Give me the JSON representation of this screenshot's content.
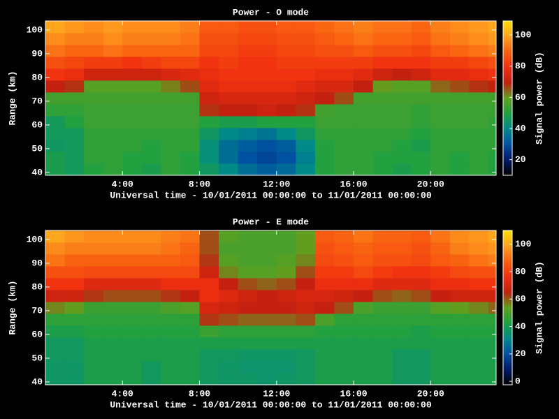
{
  "chart_data": [
    {
      "type": "heatmap",
      "title": "Power - O mode",
      "x_label": "Universal time - 10/01/2011 00:00:00 to 11/01/2011 00:00:00",
      "y_label": "Range (km)",
      "colorbar_label": "Signal power (dB)",
      "x": [
        0,
        1,
        2,
        3,
        4,
        5,
        6,
        7,
        8,
        9,
        10,
        11,
        12,
        13,
        14,
        15,
        16,
        17,
        18,
        19,
        20,
        21,
        22,
        23
      ],
      "y": [
        38.8,
        43.8,
        48.8,
        53.8,
        58.8,
        63.8,
        68.8,
        73.8,
        78.8,
        83.8,
        88.8,
        93.8,
        98.8
      ],
      "z": [
        [
          48,
          46,
          50,
          52,
          50,
          48,
          52,
          50,
          45,
          40,
          35,
          32,
          34,
          40,
          50,
          52,
          52,
          50,
          48,
          50,
          52,
          50,
          52,
          50
        ],
        [
          48,
          46,
          52,
          52,
          50,
          50,
          52,
          50,
          42,
          35,
          30,
          28,
          30,
          38,
          50,
          52,
          52,
          50,
          50,
          50,
          52,
          50,
          52,
          50
        ],
        [
          45,
          46,
          52,
          52,
          52,
          50,
          52,
          52,
          42,
          35,
          32,
          30,
          32,
          40,
          50,
          52,
          52,
          52,
          50,
          48,
          52,
          52,
          52,
          52
        ],
        [
          46,
          46,
          52,
          52,
          52,
          52,
          52,
          52,
          45,
          40,
          38,
          36,
          40,
          45,
          52,
          52,
          52,
          52,
          52,
          50,
          52,
          52,
          52,
          52
        ],
        [
          46,
          50,
          54,
          54,
          54,
          54,
          54,
          54,
          50,
          48,
          48,
          50,
          50,
          50,
          54,
          54,
          54,
          54,
          54,
          52,
          54,
          54,
          54,
          52
        ],
        [
          52,
          52,
          54,
          54,
          54,
          54,
          54,
          54,
          68,
          70,
          70,
          72,
          70,
          68,
          55,
          54,
          54,
          54,
          54,
          52,
          54,
          54,
          54,
          54
        ],
        [
          55,
          55,
          55,
          55,
          55,
          55,
          55,
          55,
          72,
          74,
          74,
          74,
          74,
          72,
          70,
          66,
          55,
          55,
          55,
          55,
          55,
          55,
          55,
          55
        ],
        [
          70,
          68,
          58,
          58,
          58,
          58,
          62,
          66,
          76,
          78,
          78,
          78,
          78,
          76,
          74,
          74,
          70,
          60,
          58,
          58,
          64,
          66,
          68,
          70
        ],
        [
          80,
          78,
          72,
          72,
          72,
          72,
          74,
          76,
          78,
          80,
          80,
          80,
          80,
          80,
          78,
          78,
          76,
          72,
          70,
          72,
          76,
          76,
          78,
          80
        ],
        [
          86,
          84,
          82,
          82,
          80,
          82,
          84,
          84,
          80,
          82,
          80,
          80,
          82,
          82,
          82,
          82,
          82,
          80,
          80,
          80,
          82,
          82,
          84,
          86
        ],
        [
          92,
          90,
          90,
          92,
          90,
          90,
          90,
          90,
          84,
          84,
          82,
          82,
          84,
          84,
          86,
          86,
          88,
          86,
          86,
          84,
          88,
          90,
          92,
          94
        ],
        [
          96,
          94,
          94,
          96,
          94,
          94,
          94,
          92,
          86,
          86,
          84,
          84,
          86,
          86,
          88,
          90,
          92,
          90,
          90,
          88,
          92,
          94,
          96,
          98
        ],
        [
          100,
          98,
          96,
          98,
          96,
          96,
          96,
          94,
          88,
          88,
          86,
          86,
          88,
          88,
          90,
          92,
          94,
          92,
          92,
          90,
          94,
          96,
          98,
          100
        ]
      ],
      "xlim": [
        0,
        23.4
      ],
      "ylim": [
        38.8,
        103.8
      ],
      "zlim": [
        10,
        109
      ],
      "xticks": [
        {
          "value": 4,
          "label": "4:00"
        },
        {
          "value": 8,
          "label": "8:00"
        },
        {
          "value": 12,
          "label": "12:00"
        },
        {
          "value": 16,
          "label": "16:00"
        },
        {
          "value": 20,
          "label": "20:00"
        }
      ],
      "yticks": [
        40,
        50,
        60,
        70,
        80,
        90,
        100
      ],
      "zticks": [
        20,
        40,
        60,
        80,
        100
      ],
      "colormap": [
        "#000000",
        "#001a66",
        "#0050a0",
        "#008a8a",
        "#20a040",
        "#60a020",
        "#c02010",
        "#f03010",
        "#f86010",
        "#ffa020",
        "#ffe000"
      ]
    },
    {
      "type": "heatmap",
      "title": "Power - E mode",
      "x_label": "Universal time - 10/01/2011 00:00:00 to 11/01/2011 00:00:00",
      "y_label": "Range (km)",
      "colorbar_label": "Signal power (dB)",
      "x": [
        0,
        1,
        2,
        3,
        4,
        5,
        6,
        7,
        8,
        9,
        10,
        11,
        12,
        13,
        14,
        15,
        16,
        17,
        18,
        19,
        20,
        21,
        22,
        23
      ],
      "y": [
        38.8,
        43.8,
        48.8,
        53.8,
        58.8,
        63.8,
        68.8,
        73.8,
        78.8,
        83.8,
        88.8,
        93.8,
        98.8
      ],
      "z": [
        [
          37,
          37,
          41,
          41,
          41,
          38,
          41,
          41,
          38,
          37,
          37,
          36,
          37,
          38,
          41,
          41,
          41,
          41,
          38,
          38,
          41,
          41,
          41,
          41
        ],
        [
          37,
          37,
          41,
          41,
          41,
          38,
          41,
          41,
          38,
          37,
          36,
          36,
          36,
          38,
          41,
          41,
          41,
          41,
          38,
          38,
          41,
          41,
          41,
          41
        ],
        [
          38,
          38,
          41,
          41,
          41,
          41,
          41,
          41,
          38,
          38,
          37,
          37,
          37,
          38,
          41,
          41,
          41,
          41,
          38,
          38,
          41,
          41,
          41,
          41
        ],
        [
          38,
          38,
          41,
          41,
          41,
          41,
          41,
          41,
          41,
          41,
          41,
          41,
          41,
          41,
          41,
          41,
          41,
          41,
          41,
          41,
          41,
          41,
          41,
          41
        ],
        [
          41,
          41,
          43,
          43,
          43,
          43,
          43,
          43,
          47,
          45,
          45,
          45,
          45,
          45,
          43,
          43,
          43,
          43,
          43,
          41,
          43,
          43,
          43,
          43
        ],
        [
          45,
          45,
          45,
          45,
          45,
          45,
          45,
          45,
          63,
          61,
          59,
          59,
          59,
          61,
          50,
          45,
          45,
          45,
          45,
          45,
          45,
          45,
          45,
          45
        ],
        [
          56,
          54,
          47,
          47,
          47,
          47,
          50,
          52,
          70,
          68,
          66,
          66,
          66,
          68,
          66,
          61,
          50,
          47,
          47,
          47,
          52,
          54,
          56,
          59
        ],
        [
          68,
          68,
          63,
          61,
          61,
          61,
          63,
          66,
          75,
          72,
          68,
          66,
          68,
          70,
          70,
          68,
          66,
          61,
          59,
          61,
          66,
          68,
          68,
          68
        ],
        [
          77,
          77,
          72,
          72,
          72,
          72,
          75,
          75,
          75,
          66,
          61,
          59,
          61,
          66,
          75,
          75,
          75,
          72,
          72,
          72,
          75,
          75,
          77,
          77
        ],
        [
          84,
          84,
          82,
          82,
          82,
          82,
          82,
          82,
          68,
          56,
          52,
          52,
          54,
          61,
          79,
          79,
          82,
          79,
          77,
          77,
          79,
          82,
          84,
          84
        ],
        [
          91,
          88,
          88,
          88,
          88,
          88,
          88,
          86,
          63,
          52,
          50,
          50,
          52,
          56,
          82,
          84,
          86,
          84,
          84,
          82,
          86,
          88,
          91,
          93
        ],
        [
          95,
          93,
          93,
          93,
          93,
          93,
          91,
          88,
          61,
          50,
          50,
          50,
          50,
          54,
          84,
          86,
          88,
          86,
          86,
          84,
          88,
          93,
          95,
          97
        ],
        [
          100,
          97,
          95,
          95,
          95,
          95,
          93,
          91,
          61,
          52,
          50,
          50,
          50,
          54,
          86,
          88,
          91,
          88,
          88,
          86,
          91,
          95,
          97,
          100
        ]
      ],
      "xlim": [
        0,
        23.4
      ],
      "ylim": [
        38.8,
        103.8
      ],
      "zlim": [
        -2.5,
        110
      ],
      "xticks": [
        {
          "value": 4,
          "label": "4:00"
        },
        {
          "value": 8,
          "label": "8:00"
        },
        {
          "value": 12,
          "label": "12:00"
        },
        {
          "value": 16,
          "label": "16:00"
        },
        {
          "value": 20,
          "label": "20:00"
        }
      ],
      "yticks": [
        40,
        50,
        60,
        70,
        80,
        90,
        100
      ],
      "zticks": [
        0,
        20,
        40,
        60,
        80,
        100
      ],
      "colormap": [
        "#000000",
        "#001a66",
        "#0050a0",
        "#008a8a",
        "#20a040",
        "#60a020",
        "#c02010",
        "#f03010",
        "#f86010",
        "#ffa020",
        "#ffe000"
      ]
    }
  ]
}
